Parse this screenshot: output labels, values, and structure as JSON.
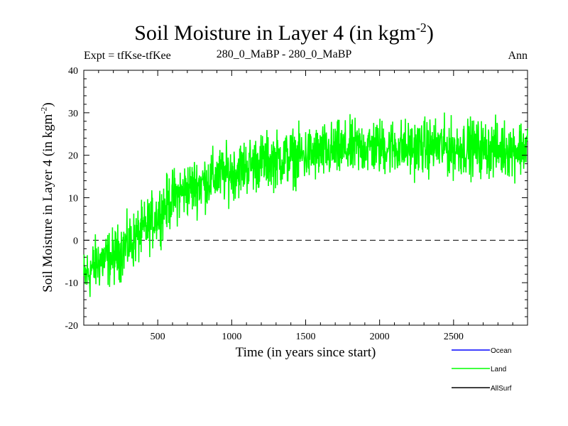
{
  "chart_data": {
    "type": "line",
    "title": "Soil Moisture in Layer 4 (in kgm",
    "title_sup": "-2",
    "title_close": ")",
    "expt_label": "Expt = tfKse-tfKee",
    "center_label": "280_0_MaBP - 280_0_MaBP",
    "season_label": "Ann",
    "ylabel": "Soil Moisture in Layer 4 (in kgm",
    "ylabel_sup": "-2",
    "ylabel_close": ")",
    "xlabel": "Time (in years since start)",
    "xlim": [
      0,
      3000
    ],
    "ylim": [
      -20,
      40
    ],
    "x_ticks": [
      500,
      1000,
      1500,
      2000,
      2500
    ],
    "x_tick_labels": [
      "500",
      "1000",
      "1500",
      "2000",
      "2500"
    ],
    "y_ticks": [
      -20,
      -10,
      0,
      10,
      20,
      30,
      40
    ],
    "y_tick_labels": [
      "-20",
      "-10",
      "0",
      "10",
      "20",
      "30",
      "40"
    ],
    "zero_line": 0,
    "series": [
      {
        "name": "Land",
        "color": "#00ff00",
        "mean_x": [
          0,
          100,
          200,
          300,
          400,
          500,
          600,
          700,
          800,
          900,
          1000,
          1100,
          1200,
          1300,
          1400,
          1500,
          1600,
          1700,
          1800,
          1900,
          2000,
          2100,
          2200,
          2300,
          2400,
          2500,
          2600,
          2700,
          2800,
          2900,
          3000
        ],
        "mean_y": [
          -9,
          -5,
          -4,
          -1,
          2,
          6,
          10,
          12,
          13.5,
          15,
          16,
          17.5,
          18.5,
          19,
          19.5,
          20,
          20.5,
          21,
          21.5,
          22,
          22,
          22,
          21.5,
          22,
          22,
          21.5,
          22,
          21.5,
          21.5,
          21.5,
          22
        ],
        "noise_amplitude": 5
      },
      {
        "name": "Ocean",
        "color": "#0000ff"
      },
      {
        "name": "AllSurf",
        "color": "#000000"
      }
    ],
    "legend": [
      {
        "label": "Ocean",
        "color": "#0000ff"
      },
      {
        "label": "Land",
        "color": "#00ff00"
      },
      {
        "label": "AllSurf",
        "color": "#000000"
      }
    ],
    "legend_position": "bottom-right"
  }
}
